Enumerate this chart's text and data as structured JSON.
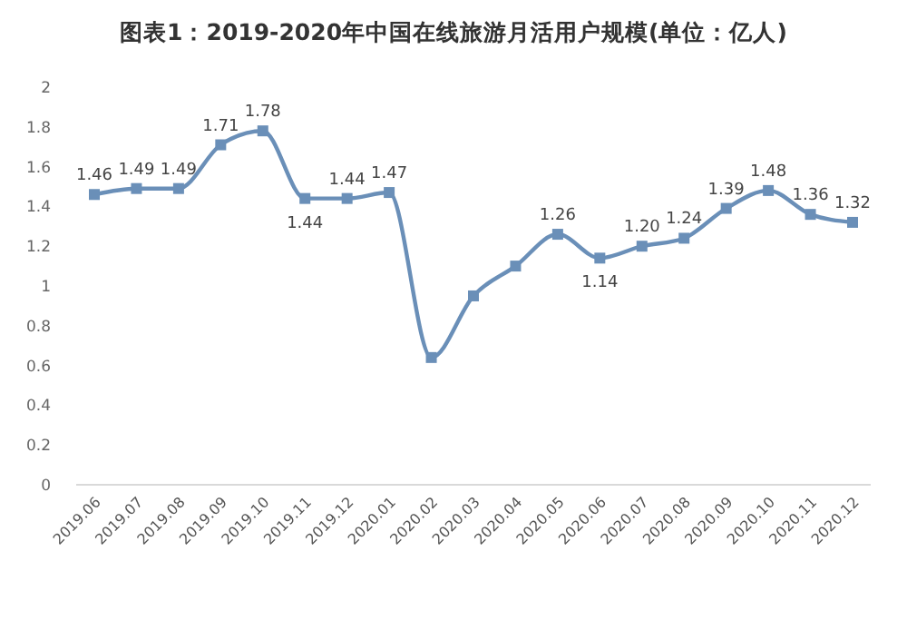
{
  "chart_data": {
    "type": "line",
    "title": "图表1：2019-2020年中国在线旅游月活用户规模(单位：亿人)",
    "categories": [
      "2019.06",
      "2019.07",
      "2019.08",
      "2019.09",
      "2019.10",
      "2019.11",
      "2019.12",
      "2020.01",
      "2020.02",
      "2020.03",
      "2020.04",
      "2020.05",
      "2020.06",
      "2020.07",
      "2020.08",
      "2020.09",
      "2020.10",
      "2020.11",
      "2020.12"
    ],
    "series": [
      {
        "color": "#6a8fb8",
        "values": [
          1.46,
          1.49,
          1.49,
          1.71,
          1.78,
          1.44,
          1.44,
          1.47,
          0.64,
          0.95,
          1.1,
          1.26,
          1.14,
          1.2,
          1.24,
          1.39,
          1.48,
          1.36,
          1.32
        ],
        "value_labels": [
          "1.46",
          "1.49",
          "1.49",
          "1.71",
          "1.78",
          "1.44",
          "1.44",
          "1.47",
          null,
          null,
          null,
          "1.26",
          "1.14",
          "1.20",
          "1.24",
          "1.39",
          "1.48",
          "1.36",
          "1.32"
        ]
      }
    ],
    "ylim": [
      0,
      2
    ],
    "yticks": [
      0,
      0.2,
      0.4,
      0.6,
      0.8,
      1,
      1.2,
      1.4,
      1.6,
      1.8,
      2
    ],
    "marker": "square"
  }
}
